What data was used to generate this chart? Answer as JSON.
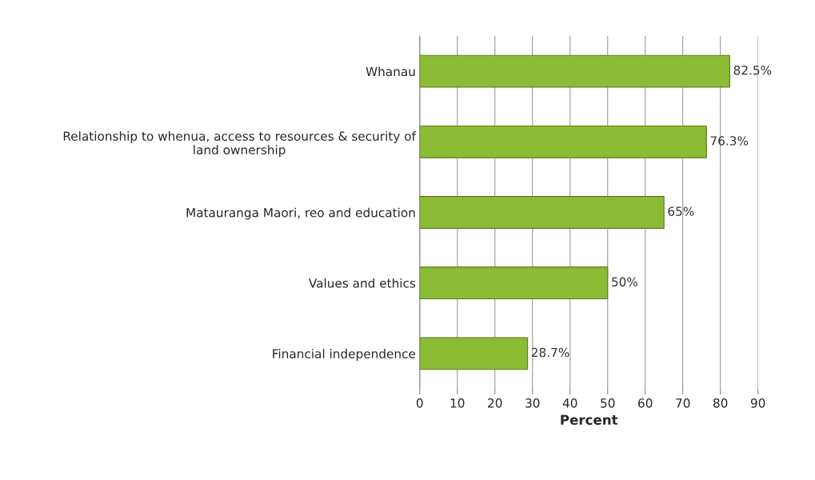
{
  "chart_data": {
    "type": "bar",
    "orientation": "horizontal",
    "xlabel": "Percent",
    "categories": [
      "Whanau",
      "Relationship to whenua, access to resources & security of\nland ownership",
      "Matauranga Maori, reo and education",
      "Values and ethics",
      "Financial independence"
    ],
    "values": [
      82.5,
      76.3,
      65,
      50,
      28.7
    ],
    "value_labels": [
      "82.5%",
      "76.3%",
      "65%",
      "50%",
      "28.7%"
    ],
    "color": "#8cbb35",
    "xlim": [
      0,
      90
    ],
    "xticks": [
      0,
      10,
      20,
      30,
      40,
      50,
      60,
      70,
      80,
      90
    ],
    "grid": "x",
    "legend": false
  }
}
